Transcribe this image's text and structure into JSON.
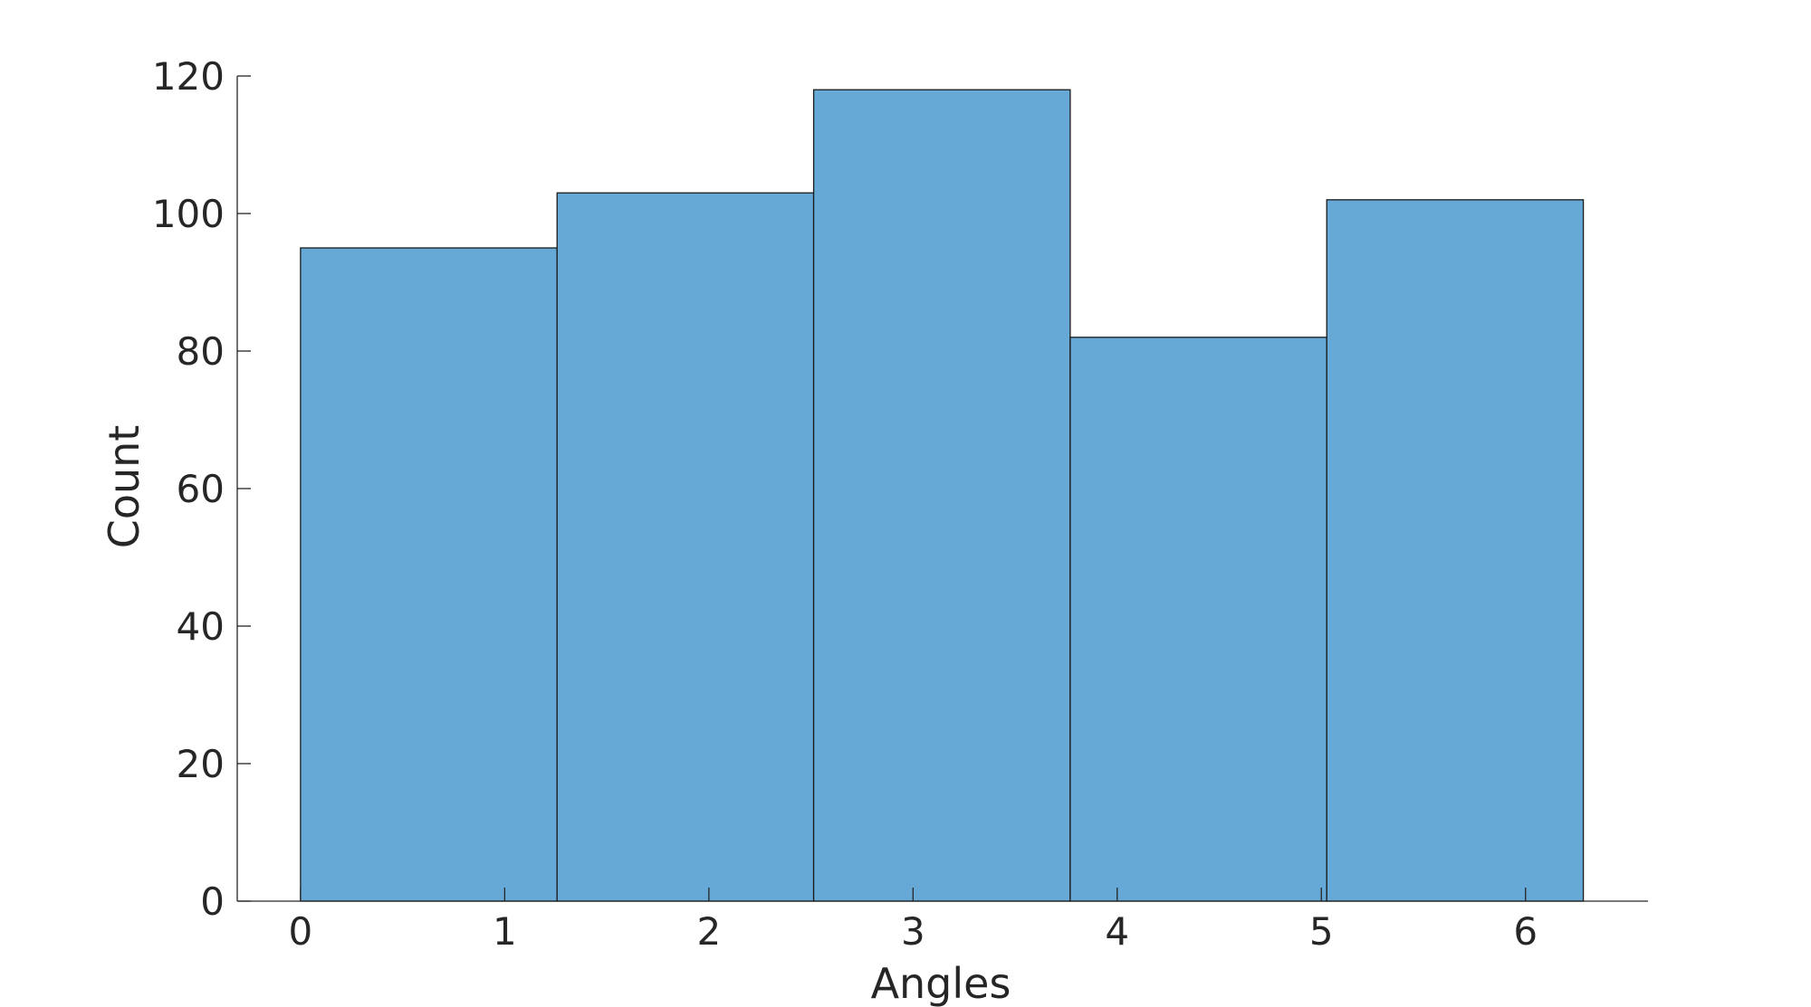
{
  "chart_data": {
    "type": "bar",
    "subtype": "histogram",
    "title": "",
    "xlabel": "Angles",
    "ylabel": "Count",
    "bin_edges": [
      0,
      1.2566,
      2.5133,
      3.7699,
      5.0265,
      6.2832
    ],
    "values": [
      95,
      103,
      118,
      82,
      102
    ],
    "xlim": [
      -0.31,
      6.6
    ],
    "ylim": [
      0,
      120
    ],
    "xticks": [
      0,
      1,
      2,
      3,
      4,
      5,
      6
    ],
    "yticks": [
      0,
      20,
      40,
      60,
      80,
      100,
      120
    ],
    "grid": false,
    "bar_color": "#66a9d7",
    "edge_color": "#1a1a1a",
    "text_color": "#262626"
  }
}
